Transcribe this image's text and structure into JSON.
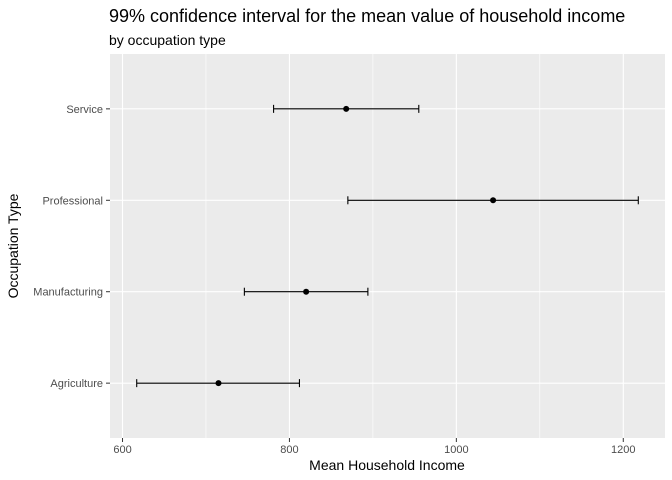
{
  "chart_data": {
    "type": "scatter",
    "title": "99% confidence interval for the mean value of household income",
    "subtitle": "by occupation type",
    "xlabel": "Mean Household Income",
    "ylabel": "Occupation Type",
    "xlim": [
      585,
      1250
    ],
    "x_ticks": [
      600,
      800,
      1000,
      1200
    ],
    "categories": [
      "Agriculture",
      "Manufacturing",
      "Professional",
      "Service"
    ],
    "points": [
      {
        "category": "Agriculture",
        "mean": 715,
        "lower": 617,
        "upper": 812
      },
      {
        "category": "Manufacturing",
        "mean": 820,
        "lower": 746,
        "upper": 894
      },
      {
        "category": "Professional",
        "mean": 1044,
        "lower": 870,
        "upper": 1218
      },
      {
        "category": "Service",
        "mean": 868,
        "lower": 781,
        "upper": 955
      }
    ],
    "grid": true,
    "legend": "none",
    "colors": {
      "panel": "#ebebeb",
      "grid_major": "#ffffff",
      "marks": "#000000"
    }
  }
}
